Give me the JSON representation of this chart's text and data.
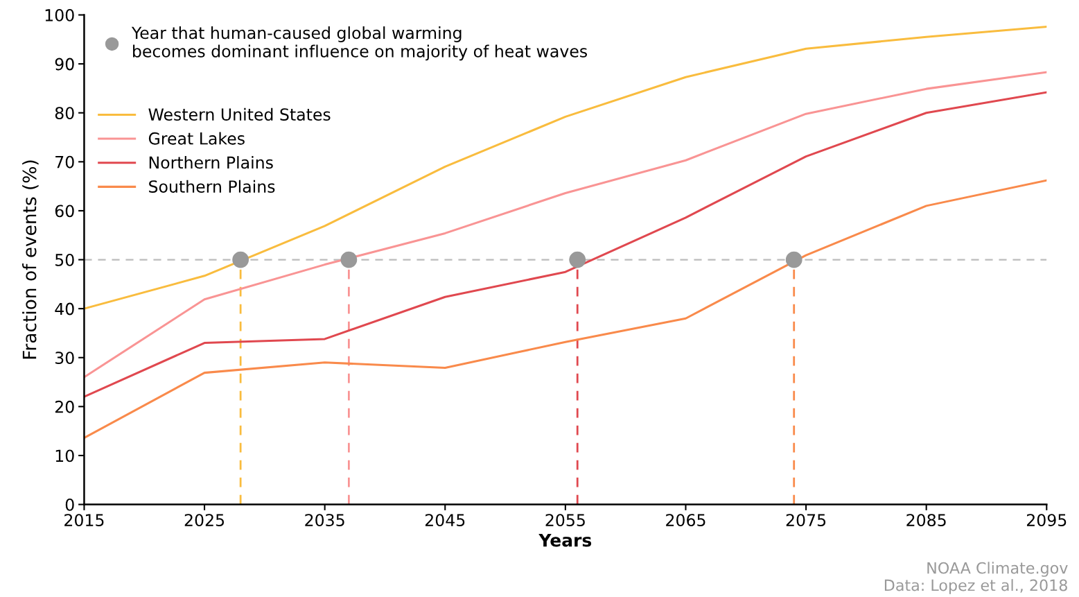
{
  "chart_data": {
    "type": "line",
    "xlabel": "Years",
    "ylabel": "Fraction of events (%)",
    "x": [
      2015,
      2025,
      2035,
      2045,
      2055,
      2065,
      2075,
      2085,
      2095
    ],
    "series": [
      {
        "name": "Western United States",
        "color": "#f9bc3e",
        "values": [
          40,
          46.7,
          56.9,
          69,
          79.2,
          87.3,
          93.1,
          95.5,
          97.6
        ]
      },
      {
        "name": "Great Lakes",
        "color": "#f99494",
        "values": [
          26,
          41.9,
          49,
          55.4,
          63.6,
          70.3,
          79.8,
          84.9,
          88.3
        ]
      },
      {
        "name": "Northern Plains",
        "color": "#e0484f",
        "values": [
          22,
          33,
          33.8,
          42.4,
          47.5,
          58.6,
          71.1,
          80,
          84.2
        ]
      },
      {
        "name": "Southern Plains",
        "color": "#f98a4b",
        "values": [
          13.6,
          26.9,
          29,
          27.9,
          33.2,
          38,
          50.9,
          61,
          66.2
        ]
      },
      {
        "name": "Year that human-caused global warming\nbecomes dominant influence on majority of heat waves",
        "type": "scatter",
        "marker": "circle",
        "color": "#999999",
        "x": [
          2028,
          2037,
          2056,
          2074
        ],
        "values": [
          50,
          50,
          50,
          50
        ]
      }
    ],
    "ref_lines": [
      {
        "axis": "y",
        "value": 50,
        "color": "#bbbbbb",
        "line_style": "dashed"
      },
      {
        "axis": "x",
        "value": 2028,
        "color": "#f9bc3e",
        "line_style": "dashed"
      },
      {
        "axis": "x",
        "value": 2037,
        "color": "#f99494",
        "line_style": "dashed"
      },
      {
        "axis": "x",
        "value": 2056,
        "color": "#e0484f",
        "line_style": "dashed"
      },
      {
        "axis": "x",
        "value": 2074,
        "color": "#f98a4b",
        "line_style": "dashed"
      }
    ],
    "xlim": [
      2015,
      2095
    ],
    "xticks": [
      2015,
      2025,
      2035,
      2045,
      2055,
      2065,
      2075,
      2085,
      2095
    ],
    "ylim": [
      0,
      100
    ],
    "yticks": [
      0,
      10,
      20,
      30,
      40,
      50,
      60,
      70,
      80,
      90,
      100
    ],
    "grid": false,
    "legend": "top left",
    "annotations": [
      "NOAA Climate.gov\nData: Lopez et al., 2018"
    ]
  }
}
